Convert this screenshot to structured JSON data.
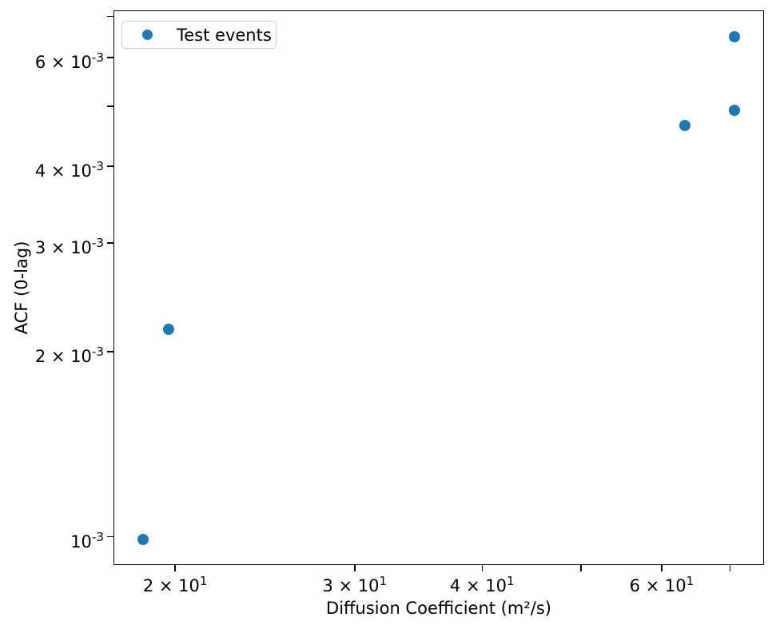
{
  "chart_data": {
    "type": "scatter",
    "title": "",
    "xlabel": "Diffusion Coefficient (m²/s)",
    "ylabel": "ACF (0-lag)",
    "xscale": "log",
    "yscale": "log",
    "xlim": [
      17.4,
      75.6
    ],
    "ylim": [
      0.0009,
      0.00716
    ],
    "grid": false,
    "legend": {
      "position": "upper left",
      "entries": [
        {
          "label": "Test events",
          "marker": "circle",
          "marker_color": "#1f77b4"
        }
      ]
    },
    "series": [
      {
        "name": "Test events",
        "marker": "circle",
        "color": "#1f77b4",
        "points": [
          {
            "x": 18.6,
            "y": 0.00099
          },
          {
            "x": 19.7,
            "y": 0.00217
          },
          {
            "x": 63.2,
            "y": 0.00465
          },
          {
            "x": 70.7,
            "y": 0.00493
          },
          {
            "x": 70.7,
            "y": 0.00649
          }
        ]
      }
    ],
    "x_axis": {
      "scale": "log",
      "ticks": [
        {
          "value": 20,
          "label": "2 × 10^1"
        },
        {
          "value": 30,
          "label": "3 × 10^1"
        },
        {
          "value": 40,
          "label": "4 × 10^1"
        },
        {
          "value": 50,
          "label": ""
        },
        {
          "value": 60,
          "label": "6 × 10^1"
        },
        {
          "value": 70,
          "label": ""
        }
      ]
    },
    "y_axis": {
      "scale": "log",
      "ticks": [
        {
          "value": 0.001,
          "label": "10^-3"
        },
        {
          "value": 0.002,
          "label": "2 × 10^-3"
        },
        {
          "value": 0.003,
          "label": "3 × 10^-3"
        },
        {
          "value": 0.004,
          "label": "4 × 10^-3"
        },
        {
          "value": 0.005,
          "label": ""
        },
        {
          "value": 0.006,
          "label": "6 × 10^-3"
        },
        {
          "value": 0.007,
          "label": ""
        }
      ]
    }
  },
  "colors": {
    "marker": "#1f77b4",
    "spine": "#000000",
    "legend_border": "#cccccc",
    "background": "#ffffff"
  }
}
